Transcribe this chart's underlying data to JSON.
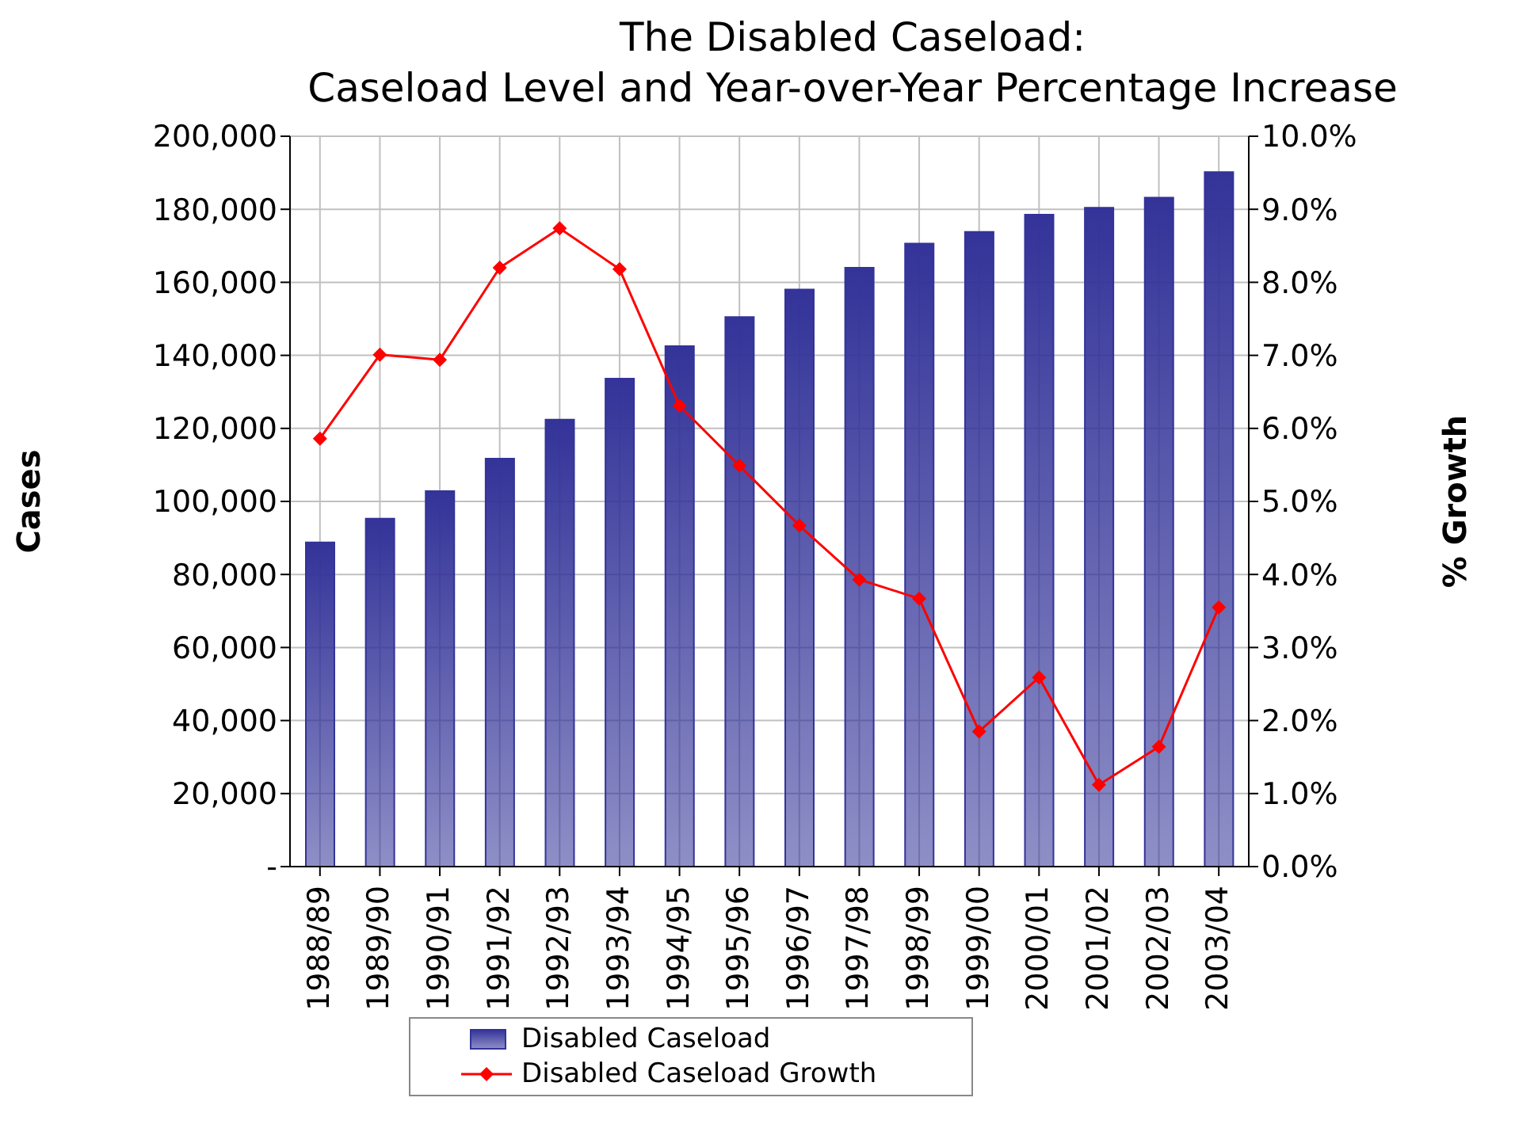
{
  "chart_data": {
    "type": "bar",
    "title": "The Disabled Caseload:",
    "subtitle": "Caseload Level and Year-over-Year Percentage Increase",
    "ylabel": "Cases",
    "y2label": "% Growth",
    "categories": [
      "1988/89",
      "1989/90",
      "1990/91",
      "1991/92",
      "1992/93",
      "1993/94",
      "1994/95",
      "1995/96",
      "1996/97",
      "1997/98",
      "1998/99",
      "1999/00",
      "2000/01",
      "2001/02",
      "2002/03",
      "2003/04"
    ],
    "series": [
      {
        "name": "Disabled Caseload",
        "color": "#333399",
        "values": [
          88800,
          95300,
          102800,
          111700,
          122400,
          133600,
          142500,
          150500,
          158000,
          164000,
          170600,
          173800,
          178500,
          180400,
          183200,
          190200
        ]
      },
      {
        "name": "Disabled Caseload Growth",
        "type": "line",
        "axis": "y2",
        "color": "#ff0000",
        "marker": "diamond",
        "values": [
          5.86,
          7.01,
          6.94,
          8.2,
          8.74,
          8.18,
          6.31,
          5.49,
          4.67,
          3.93,
          3.67,
          1.85,
          2.59,
          1.12,
          1.64,
          3.55
        ]
      }
    ],
    "ylim": [
      0,
      200000
    ],
    "yticks": [
      {
        "value": 0,
        "label": "-"
      },
      {
        "value": 20000,
        "label": "20,000"
      },
      {
        "value": 40000,
        "label": "40,000"
      },
      {
        "value": 60000,
        "label": "60,000"
      },
      {
        "value": 80000,
        "label": "80,000"
      },
      {
        "value": 100000,
        "label": "100,000"
      },
      {
        "value": 120000,
        "label": "120,000"
      },
      {
        "value": 140000,
        "label": "140,000"
      },
      {
        "value": 160000,
        "label": "160,000"
      },
      {
        "value": 180000,
        "label": "180,000"
      },
      {
        "value": 200000,
        "label": "200,000"
      }
    ],
    "y2lim": [
      0,
      10
    ],
    "y2ticks": [
      {
        "value": 0,
        "label": "0.0%"
      },
      {
        "value": 1,
        "label": "1.0%"
      },
      {
        "value": 2,
        "label": "2.0%"
      },
      {
        "value": 3,
        "label": "3.0%"
      },
      {
        "value": 4,
        "label": "4.0%"
      },
      {
        "value": 5,
        "label": "5.0%"
      },
      {
        "value": 6,
        "label": "6.0%"
      },
      {
        "value": 7,
        "label": "7.0%"
      },
      {
        "value": 8,
        "label": "8.0%"
      },
      {
        "value": 9,
        "label": "9.0%"
      },
      {
        "value": 10,
        "label": "10.0%"
      }
    ],
    "grid": true,
    "legend": "bottom"
  }
}
